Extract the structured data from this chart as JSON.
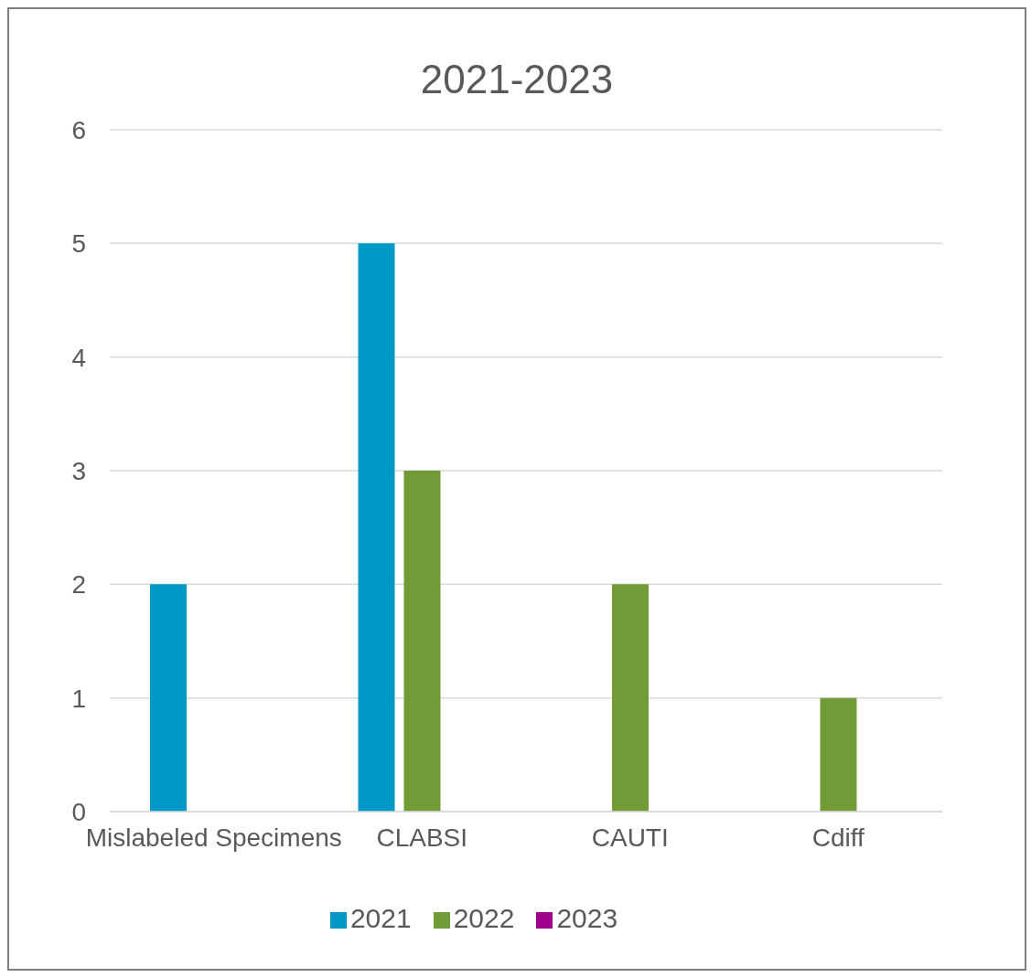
{
  "chart_data": {
    "type": "bar",
    "title": "2021-2023",
    "categories": [
      "Mislabeled Specimens",
      "CLABSI",
      "CAUTI",
      "Cdiff"
    ],
    "series": [
      {
        "name": "2021",
        "color": "#0099c6",
        "values": [
          2,
          5,
          null,
          null
        ]
      },
      {
        "name": "2022",
        "color": "#709b36",
        "values": [
          null,
          3,
          2,
          1
        ]
      },
      {
        "name": "2023",
        "color": "#a0008a",
        "values": [
          null,
          null,
          null,
          null
        ]
      }
    ],
    "ylim": [
      0,
      6
    ],
    "yticks": [
      0,
      1,
      2,
      3,
      4,
      5,
      6
    ],
    "grid": "y",
    "legend": "bottom"
  }
}
